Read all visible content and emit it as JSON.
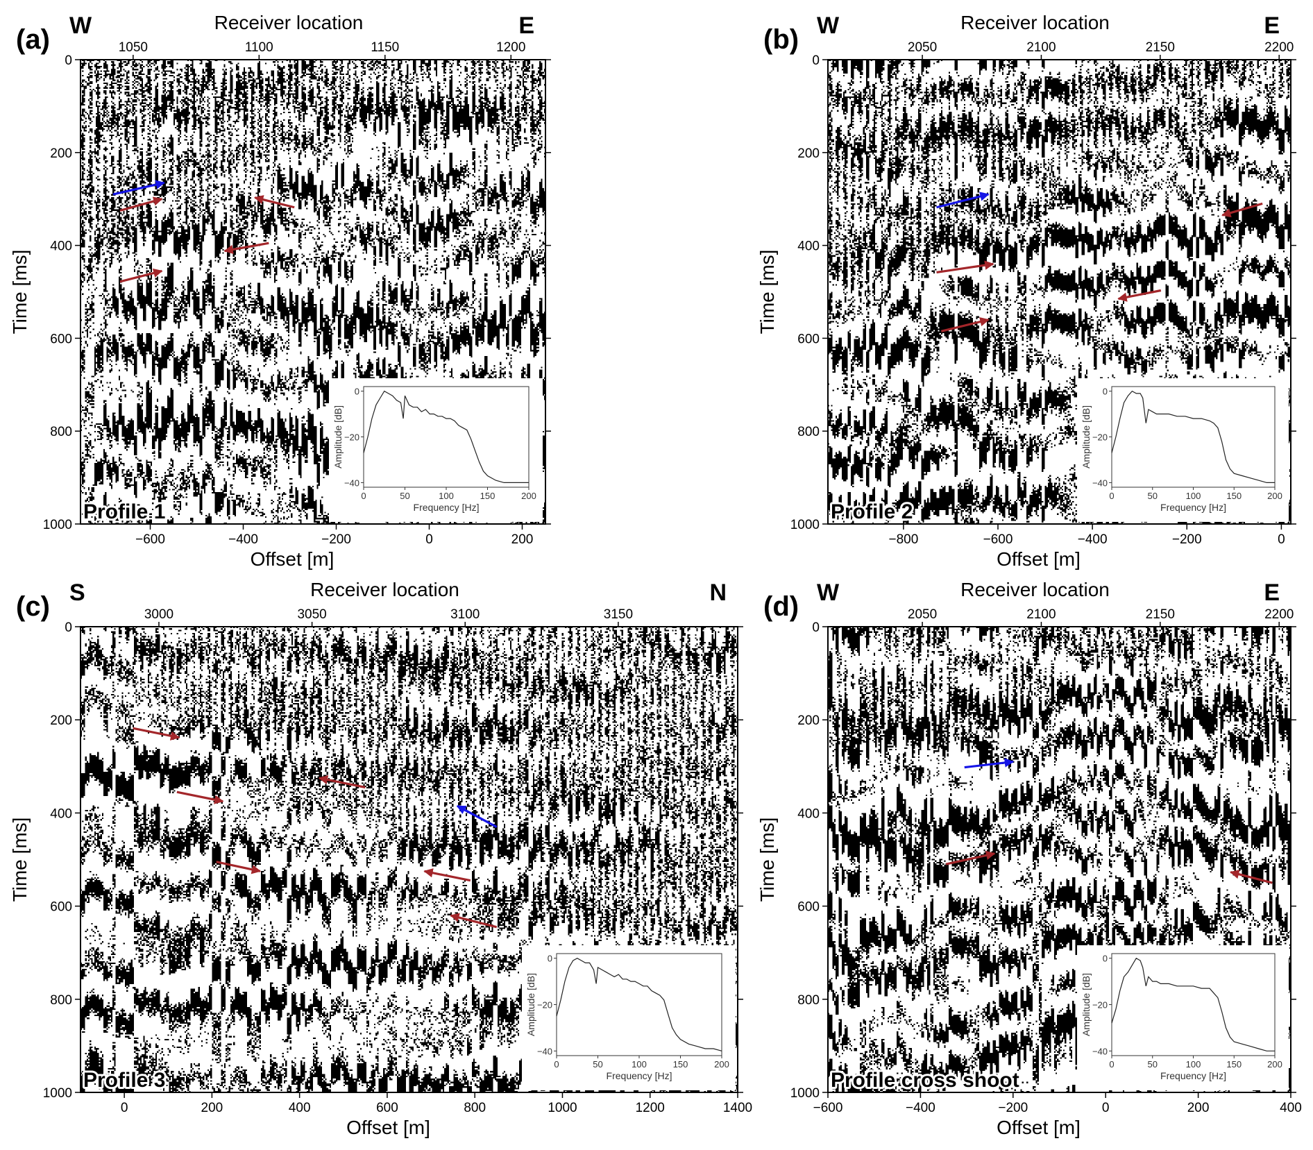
{
  "chart_data": [
    {
      "type": "seismic_shot_gather",
      "panel_label": "(a)",
      "profile_label": "Profile 1",
      "top_axis_label": "Receiver location",
      "left_end_label": "W",
      "right_end_label": "E",
      "top_ticks": [
        1050,
        1100,
        1150,
        1200
      ],
      "top_range": [
        1029.1,
        1213.7
      ],
      "xlabel": "Offset [m]",
      "xlim": [
        -750,
        250
      ],
      "xticks": [
        -600,
        -400,
        -200,
        0,
        200
      ],
      "ylabel": "Time [ms]",
      "ylim": [
        0,
        1000
      ],
      "yticks": [
        0,
        200,
        400,
        600,
        800,
        1000
      ],
      "source_offset": 0,
      "arrows": [
        {
          "color": "blue",
          "tip": [
            -570,
            265
          ],
          "tail": [
            -680,
            290
          ]
        },
        {
          "color": "red",
          "tip": [
            -575,
            300
          ],
          "tail": [
            -665,
            325
          ]
        },
        {
          "color": "red",
          "tip": [
            -375,
            297
          ],
          "tail": [
            -290,
            318
          ]
        },
        {
          "color": "red",
          "tip": [
            -440,
            412
          ],
          "tail": [
            -345,
            395
          ]
        },
        {
          "color": "red",
          "tip": [
            -575,
            455
          ],
          "tail": [
            -665,
            478
          ]
        }
      ],
      "inset": {
        "xlabel": "Frequency [Hz]",
        "ylabel": "Amplitude [dB]",
        "xticks": [
          0,
          50,
          100,
          150,
          200
        ],
        "yticks": [
          0,
          -20,
          -40
        ],
        "xlim": [
          0,
          200
        ],
        "ylim": [
          -42,
          2
        ],
        "spectrum": [
          [
            0,
            -27
          ],
          [
            5,
            -20
          ],
          [
            10,
            -12
          ],
          [
            15,
            -6
          ],
          [
            20,
            -3
          ],
          [
            25,
            0
          ],
          [
            30,
            -1
          ],
          [
            35,
            -2
          ],
          [
            40,
            -4
          ],
          [
            45,
            -5
          ],
          [
            48,
            -12
          ],
          [
            50,
            -2
          ],
          [
            55,
            -6
          ],
          [
            60,
            -7
          ],
          [
            65,
            -7
          ],
          [
            70,
            -9
          ],
          [
            75,
            -8
          ],
          [
            80,
            -10
          ],
          [
            85,
            -10
          ],
          [
            90,
            -11
          ],
          [
            95,
            -11
          ],
          [
            100,
            -12
          ],
          [
            105,
            -12
          ],
          [
            110,
            -13
          ],
          [
            115,
            -15
          ],
          [
            120,
            -16
          ],
          [
            125,
            -17
          ],
          [
            130,
            -21
          ],
          [
            135,
            -26
          ],
          [
            140,
            -31
          ],
          [
            145,
            -35
          ],
          [
            150,
            -37
          ],
          [
            160,
            -39
          ],
          [
            170,
            -40
          ],
          [
            180,
            -40
          ],
          [
            190,
            -40
          ],
          [
            200,
            -40
          ]
        ]
      }
    },
    {
      "type": "seismic_shot_gather",
      "panel_label": "(b)",
      "profile_label": "Profile 2",
      "top_axis_label": "Receiver location",
      "left_end_label": "W",
      "right_end_label": "E",
      "top_ticks": [
        2050,
        2100,
        2150,
        2200
      ],
      "top_range": [
        2010.3,
        2204.9
      ],
      "xlabel": "Offset [m]",
      "xlim": [
        -960,
        20
      ],
      "xticks": [
        -800,
        -600,
        -400,
        -200,
        0
      ],
      "ylabel": "Time [ms]",
      "ylim": [
        0,
        1000
      ],
      "yticks": [
        0,
        200,
        400,
        600,
        800,
        1000
      ],
      "source_offset": -30,
      "arrows": [
        {
          "color": "blue",
          "tip": [
            -620,
            290
          ],
          "tail": [
            -730,
            318
          ]
        },
        {
          "color": "red",
          "tip": [
            -125,
            335
          ],
          "tail": [
            -40,
            310
          ]
        },
        {
          "color": "red",
          "tip": [
            -610,
            440
          ],
          "tail": [
            -730,
            458
          ]
        },
        {
          "color": "red",
          "tip": [
            -345,
            515
          ],
          "tail": [
            -255,
            497
          ]
        },
        {
          "color": "red",
          "tip": [
            -620,
            560
          ],
          "tail": [
            -720,
            585
          ]
        }
      ],
      "inset": {
        "xlabel": "Frequency [Hz]",
        "ylabel": "Amplitude [dB]",
        "xticks": [
          0,
          50,
          100,
          150,
          200
        ],
        "yticks": [
          0,
          -20,
          -40
        ],
        "xlim": [
          0,
          200
        ],
        "ylim": [
          -42,
          2
        ],
        "spectrum": [
          [
            0,
            -27
          ],
          [
            5,
            -20
          ],
          [
            10,
            -12
          ],
          [
            15,
            -5
          ],
          [
            20,
            -2
          ],
          [
            25,
            0
          ],
          [
            30,
            -1
          ],
          [
            35,
            -1
          ],
          [
            38,
            -3
          ],
          [
            42,
            -14
          ],
          [
            45,
            -8
          ],
          [
            50,
            -9
          ],
          [
            55,
            -10
          ],
          [
            60,
            -10
          ],
          [
            70,
            -10
          ],
          [
            80,
            -11
          ],
          [
            90,
            -11
          ],
          [
            100,
            -12
          ],
          [
            110,
            -12
          ],
          [
            120,
            -13
          ],
          [
            125,
            -14
          ],
          [
            130,
            -16
          ],
          [
            135,
            -22
          ],
          [
            140,
            -30
          ],
          [
            145,
            -34
          ],
          [
            150,
            -36
          ],
          [
            160,
            -37
          ],
          [
            170,
            -38
          ],
          [
            180,
            -39
          ],
          [
            190,
            -40
          ],
          [
            200,
            -40
          ]
        ]
      }
    },
    {
      "type": "seismic_shot_gather",
      "panel_label": "(c)",
      "profile_label": "Profile 3",
      "top_axis_label": "Receiver location",
      "left_end_label": "S",
      "right_end_label": "N",
      "top_ticks": [
        3000,
        3050,
        3100,
        3150
      ],
      "top_range": [
        2974.4,
        3189.0
      ],
      "xlabel": "Offset [m]",
      "xlim": [
        -100,
        1400
      ],
      "xticks": [
        0,
        200,
        400,
        600,
        800,
        1000,
        1200,
        1400
      ],
      "ylabel": "Time [ms]",
      "ylim": [
        0,
        1000
      ],
      "yticks": [
        0,
        200,
        400,
        600,
        800,
        1000
      ],
      "source_offset": -100,
      "arrows": [
        {
          "color": "red",
          "tip": [
            125,
            238
          ],
          "tail": [
            20,
            218
          ]
        },
        {
          "color": "red",
          "tip": [
            225,
            375
          ],
          "tail": [
            120,
            355
          ]
        },
        {
          "color": "red",
          "tip": [
            310,
            525
          ],
          "tail": [
            210,
            505
          ]
        },
        {
          "color": "red",
          "tip": [
            445,
            325
          ],
          "tail": [
            550,
            345
          ]
        },
        {
          "color": "blue",
          "tip": [
            760,
            385
          ],
          "tail": [
            850,
            430
          ]
        },
        {
          "color": "red",
          "tip": [
            685,
            525
          ],
          "tail": [
            790,
            545
          ]
        },
        {
          "color": "red",
          "tip": [
            745,
            620
          ],
          "tail": [
            850,
            645
          ]
        }
      ],
      "inset": {
        "xlabel": "Frequency [Hz]",
        "ylabel": "Amplitude [dB]",
        "xticks": [
          0,
          50,
          100,
          150,
          200
        ],
        "yticks": [
          0,
          -20,
          -40
        ],
        "xlim": [
          0,
          200
        ],
        "ylim": [
          -42,
          2
        ],
        "spectrum": [
          [
            0,
            -25
          ],
          [
            5,
            -18
          ],
          [
            10,
            -10
          ],
          [
            15,
            -4
          ],
          [
            20,
            -1
          ],
          [
            25,
            0
          ],
          [
            30,
            -1
          ],
          [
            35,
            -2
          ],
          [
            40,
            -2
          ],
          [
            45,
            -5
          ],
          [
            48,
            -11
          ],
          [
            50,
            -4
          ],
          [
            55,
            -5
          ],
          [
            60,
            -6
          ],
          [
            65,
            -7
          ],
          [
            70,
            -8
          ],
          [
            75,
            -7
          ],
          [
            80,
            -9
          ],
          [
            85,
            -9
          ],
          [
            90,
            -10
          ],
          [
            95,
            -10
          ],
          [
            100,
            -11
          ],
          [
            105,
            -12
          ],
          [
            110,
            -12
          ],
          [
            115,
            -14
          ],
          [
            120,
            -15
          ],
          [
            125,
            -16
          ],
          [
            130,
            -18
          ],
          [
            135,
            -24
          ],
          [
            140,
            -30
          ],
          [
            145,
            -33
          ],
          [
            150,
            -35
          ],
          [
            160,
            -37
          ],
          [
            170,
            -38
          ],
          [
            180,
            -39
          ],
          [
            190,
            -39
          ],
          [
            200,
            -40
          ]
        ]
      }
    },
    {
      "type": "seismic_shot_gather",
      "panel_label": "(d)",
      "profile_label": "Profile cross shoot",
      "top_axis_label": "Receiver location",
      "left_end_label": "W",
      "right_end_label": "E",
      "top_ticks": [
        2050,
        2100,
        2150,
        2200
      ],
      "top_range": [
        2010.3,
        2204.9
      ],
      "xlabel": "Offset [m]",
      "xlim": [
        -600,
        400
      ],
      "xticks": [
        -600,
        -400,
        -200,
        0,
        200,
        400
      ],
      "ylabel": "Time [ms]",
      "ylim": [
        0,
        1000
      ],
      "yticks": [
        0,
        200,
        400,
        600,
        800,
        1000
      ],
      "source_offset": 0,
      "arrows": [
        {
          "color": "blue",
          "tip": [
            -200,
            290
          ],
          "tail": [
            -305,
            302
          ]
        },
        {
          "color": "red",
          "tip": [
            -240,
            487
          ],
          "tail": [
            -345,
            510
          ]
        },
        {
          "color": "red",
          "tip": [
            270,
            527
          ],
          "tail": [
            360,
            550
          ]
        }
      ],
      "inset": {
        "xlabel": "Frequency [Hz]",
        "ylabel": "Amplitude [dB]",
        "xticks": [
          0,
          50,
          100,
          150,
          200
        ],
        "yticks": [
          0,
          -20,
          -40
        ],
        "xlim": [
          0,
          200
        ],
        "ylim": [
          -42,
          2
        ],
        "spectrum": [
          [
            0,
            -28
          ],
          [
            5,
            -22
          ],
          [
            10,
            -14
          ],
          [
            15,
            -8
          ],
          [
            20,
            -6
          ],
          [
            25,
            -3
          ],
          [
            30,
            0
          ],
          [
            35,
            -1
          ],
          [
            38,
            -4
          ],
          [
            42,
            -12
          ],
          [
            45,
            -8
          ],
          [
            50,
            -10
          ],
          [
            55,
            -10
          ],
          [
            60,
            -11
          ],
          [
            70,
            -11
          ],
          [
            80,
            -12
          ],
          [
            90,
            -12
          ],
          [
            100,
            -12
          ],
          [
            110,
            -13
          ],
          [
            120,
            -13
          ],
          [
            125,
            -15
          ],
          [
            130,
            -17
          ],
          [
            135,
            -23
          ],
          [
            140,
            -30
          ],
          [
            145,
            -34
          ],
          [
            150,
            -36
          ],
          [
            160,
            -37
          ],
          [
            170,
            -38
          ],
          [
            180,
            -39
          ],
          [
            190,
            -40
          ],
          [
            200,
            -40
          ]
        ]
      }
    }
  ]
}
